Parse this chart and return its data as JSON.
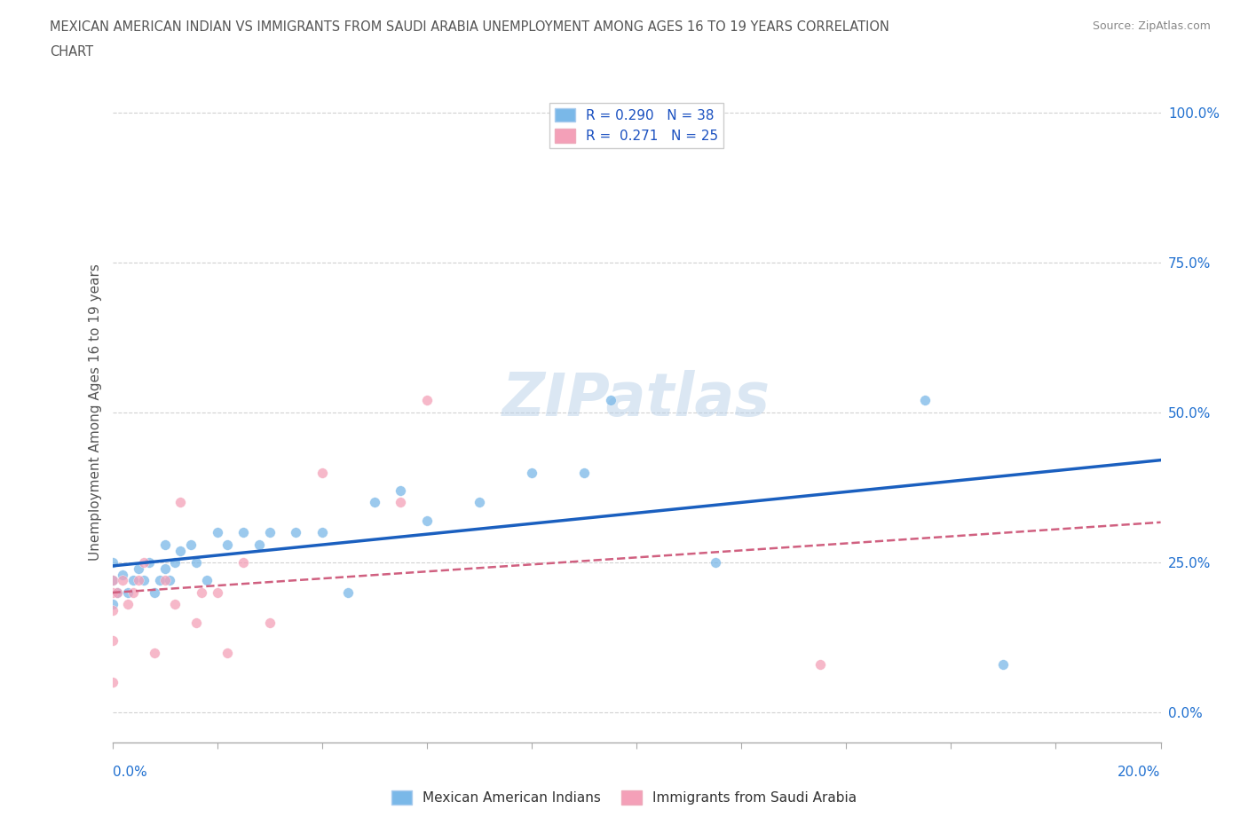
{
  "title_line1": "MEXICAN AMERICAN INDIAN VS IMMIGRANTS FROM SAUDI ARABIA UNEMPLOYMENT AMONG AGES 16 TO 19 YEARS CORRELATION",
  "title_line2": "CHART",
  "source_text": "Source: ZipAtlas.com",
  "ylabel": "Unemployment Among Ages 16 to 19 years",
  "xlim": [
    0.0,
    0.2
  ],
  "ylim": [
    -0.05,
    1.05
  ],
  "ytick_labels": [
    "0.0%",
    "25.0%",
    "50.0%",
    "75.0%",
    "100.0%"
  ],
  "ytick_values": [
    0.0,
    0.25,
    0.5,
    0.75,
    1.0
  ],
  "xtick_values": [
    0.0,
    0.02,
    0.04,
    0.06,
    0.08,
    0.1,
    0.12,
    0.14,
    0.16,
    0.18,
    0.2
  ],
  "blue_color": "#7ab8e8",
  "pink_color": "#f4a0b8",
  "trendline_blue_color": "#1a5fbf",
  "trendline_pink_color": "#d06080",
  "watermark": "ZIPatlas",
  "blue_x": [
    0.0,
    0.0,
    0.0,
    0.001,
    0.002,
    0.003,
    0.004,
    0.005,
    0.006,
    0.007,
    0.008,
    0.009,
    0.01,
    0.01,
    0.011,
    0.012,
    0.013,
    0.015,
    0.016,
    0.018,
    0.02,
    0.022,
    0.025,
    0.028,
    0.03,
    0.035,
    0.04,
    0.045,
    0.05,
    0.055,
    0.06,
    0.07,
    0.08,
    0.09,
    0.095,
    0.115,
    0.155,
    0.17
  ],
  "blue_y": [
    0.22,
    0.25,
    0.18,
    0.2,
    0.23,
    0.2,
    0.22,
    0.24,
    0.22,
    0.25,
    0.2,
    0.22,
    0.24,
    0.28,
    0.22,
    0.25,
    0.27,
    0.28,
    0.25,
    0.22,
    0.3,
    0.28,
    0.3,
    0.28,
    0.3,
    0.3,
    0.3,
    0.2,
    0.35,
    0.37,
    0.32,
    0.35,
    0.4,
    0.4,
    0.52,
    0.25,
    0.52,
    0.08
  ],
  "pink_x": [
    0.0,
    0.0,
    0.0,
    0.0,
    0.0,
    0.001,
    0.002,
    0.003,
    0.004,
    0.005,
    0.006,
    0.008,
    0.01,
    0.012,
    0.013,
    0.016,
    0.017,
    0.02,
    0.022,
    0.025,
    0.03,
    0.04,
    0.055,
    0.06,
    0.135
  ],
  "pink_y": [
    0.2,
    0.22,
    0.12,
    0.17,
    0.05,
    0.2,
    0.22,
    0.18,
    0.2,
    0.22,
    0.25,
    0.1,
    0.22,
    0.18,
    0.35,
    0.15,
    0.2,
    0.2,
    0.1,
    0.25,
    0.15,
    0.4,
    0.35,
    0.52,
    0.08
  ],
  "background_color": "#ffffff",
  "grid_color": "#cccccc"
}
